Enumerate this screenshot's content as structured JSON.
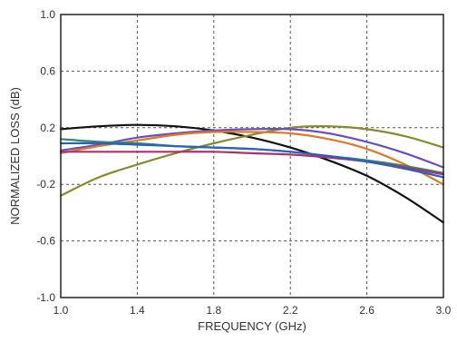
{
  "chart_data": {
    "type": "line",
    "xlabel": "FREQUENCY (GHz)",
    "ylabel": "NORMALIZED LOSS (dB)",
    "xlim": [
      1.0,
      3.0
    ],
    "ylim": [
      -1.0,
      1.0
    ],
    "grid": true,
    "x_ticks": [
      "1.0",
      "1.4",
      "1.8",
      "2.2",
      "2.6",
      "3.0"
    ],
    "y_ticks": [
      "1.0",
      "0.6",
      "0.2",
      "-0.2",
      "-0.6",
      "-1.0"
    ],
    "x": [
      1.0,
      1.2,
      1.4,
      1.6,
      1.8,
      2.0,
      2.2,
      2.4,
      2.6,
      2.8,
      3.0
    ],
    "series": [
      {
        "color": "#111111",
        "values": [
          0.19,
          0.21,
          0.22,
          0.21,
          0.18,
          0.13,
          0.06,
          -0.03,
          -0.14,
          -0.29,
          -0.47
        ]
      },
      {
        "color": "#8a8a2a",
        "values": [
          -0.28,
          -0.15,
          -0.06,
          0.02,
          0.09,
          0.15,
          0.2,
          0.21,
          0.19,
          0.14,
          0.06
        ]
      },
      {
        "color": "#6a4fc4",
        "values": [
          0.04,
          0.08,
          0.13,
          0.16,
          0.18,
          0.19,
          0.19,
          0.16,
          0.1,
          0.02,
          -0.08
        ]
      },
      {
        "color": "#e07a1f",
        "values": [
          0.02,
          0.07,
          0.11,
          0.15,
          0.17,
          0.17,
          0.16,
          0.12,
          0.05,
          -0.06,
          -0.2
        ]
      },
      {
        "color": "#2e8a6a",
        "values": [
          0.12,
          0.1,
          0.09,
          0.07,
          0.06,
          0.05,
          0.03,
          0.0,
          -0.03,
          -0.07,
          -0.12
        ]
      },
      {
        "color": "#b0306a",
        "values": [
          0.03,
          0.03,
          0.03,
          0.03,
          0.03,
          0.02,
          0.01,
          -0.01,
          -0.04,
          -0.08,
          -0.13
        ]
      },
      {
        "color": "#2a5fc4",
        "values": [
          0.09,
          0.09,
          0.08,
          0.07,
          0.06,
          0.05,
          0.03,
          0.0,
          -0.04,
          -0.09,
          -0.15
        ]
      }
    ]
  }
}
